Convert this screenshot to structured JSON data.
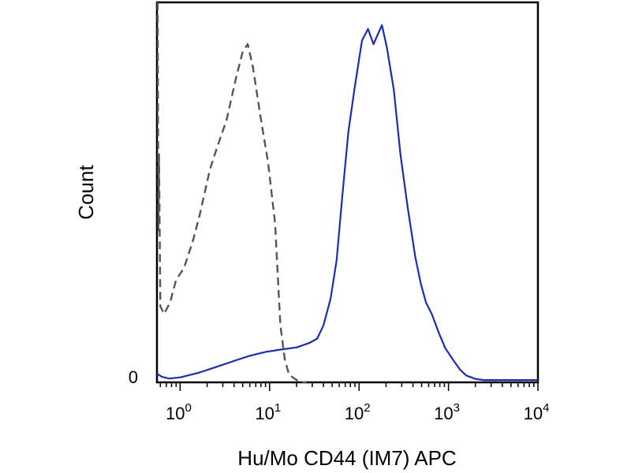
{
  "chart_data": {
    "type": "line",
    "title": "",
    "xlabel": "Hu/Mo CD44 (IM7) APC",
    "ylabel": "Count",
    "x_scale": "log",
    "xlim": [
      0.55,
      10000
    ],
    "ylim": [
      0,
      100
    ],
    "grid": false,
    "x_ticks": [
      {
        "base": "10",
        "exp": "0",
        "value": 1
      },
      {
        "base": "10",
        "exp": "1",
        "value": 10
      },
      {
        "base": "10",
        "exp": "2",
        "value": 100
      },
      {
        "base": "10",
        "exp": "3",
        "value": 1000
      },
      {
        "base": "10",
        "exp": "4",
        "value": 10000
      }
    ],
    "y_ticks": [
      {
        "label": "0",
        "value": 0
      }
    ],
    "series": [
      {
        "style": "dashed",
        "color": "#555555",
        "points": [
          [
            0.56,
            100
          ],
          [
            0.57,
            40
          ],
          [
            0.58,
            60
          ],
          [
            0.6,
            20
          ],
          [
            0.66,
            18
          ],
          [
            0.77,
            21
          ],
          [
            0.9,
            27
          ],
          [
            1.1,
            30
          ],
          [
            1.38,
            37
          ],
          [
            1.65,
            44
          ],
          [
            2.15,
            56
          ],
          [
            2.6,
            62
          ],
          [
            3.3,
            69
          ],
          [
            4.2,
            80
          ],
          [
            5.0,
            87
          ],
          [
            5.7,
            89
          ],
          [
            6.5,
            83
          ],
          [
            7.9,
            70
          ],
          [
            9.6,
            58
          ],
          [
            11.5,
            42
          ],
          [
            13.2,
            15
          ],
          [
            14.8,
            6
          ],
          [
            16.5,
            2
          ],
          [
            19,
            1
          ],
          [
            22,
            0
          ],
          [
            26,
            0
          ]
        ]
      },
      {
        "style": "solid",
        "color": "#1a2db2",
        "points": [
          [
            0.55,
            2.3
          ],
          [
            0.62,
            1.5
          ],
          [
            0.75,
            1.0
          ],
          [
            1.0,
            1.3
          ],
          [
            1.6,
            2.5
          ],
          [
            2.5,
            4.0
          ],
          [
            4.2,
            5.8
          ],
          [
            6.0,
            7.0
          ],
          [
            9.0,
            8.0
          ],
          [
            13.2,
            8.6
          ],
          [
            20,
            9.2
          ],
          [
            28,
            10.4
          ],
          [
            34,
            11.5
          ],
          [
            40,
            15
          ],
          [
            48,
            22
          ],
          [
            56,
            32
          ],
          [
            65,
            49
          ],
          [
            76,
            66
          ],
          [
            90,
            78
          ],
          [
            108,
            90
          ],
          [
            126,
            93
          ],
          [
            145,
            89
          ],
          [
            165,
            92
          ],
          [
            180,
            94
          ],
          [
            205,
            88
          ],
          [
            245,
            77
          ],
          [
            290,
            60
          ],
          [
            350,
            46
          ],
          [
            425,
            33
          ],
          [
            490,
            26
          ],
          [
            560,
            21
          ],
          [
            650,
            18
          ],
          [
            780,
            13
          ],
          [
            920,
            9.0
          ],
          [
            1120,
            6.0
          ],
          [
            1350,
            3.3
          ],
          [
            1580,
            1.8
          ],
          [
            2000,
            0.9
          ],
          [
            2500,
            0.6
          ],
          [
            4000,
            0.6
          ],
          [
            10000,
            0.6
          ]
        ]
      }
    ]
  }
}
